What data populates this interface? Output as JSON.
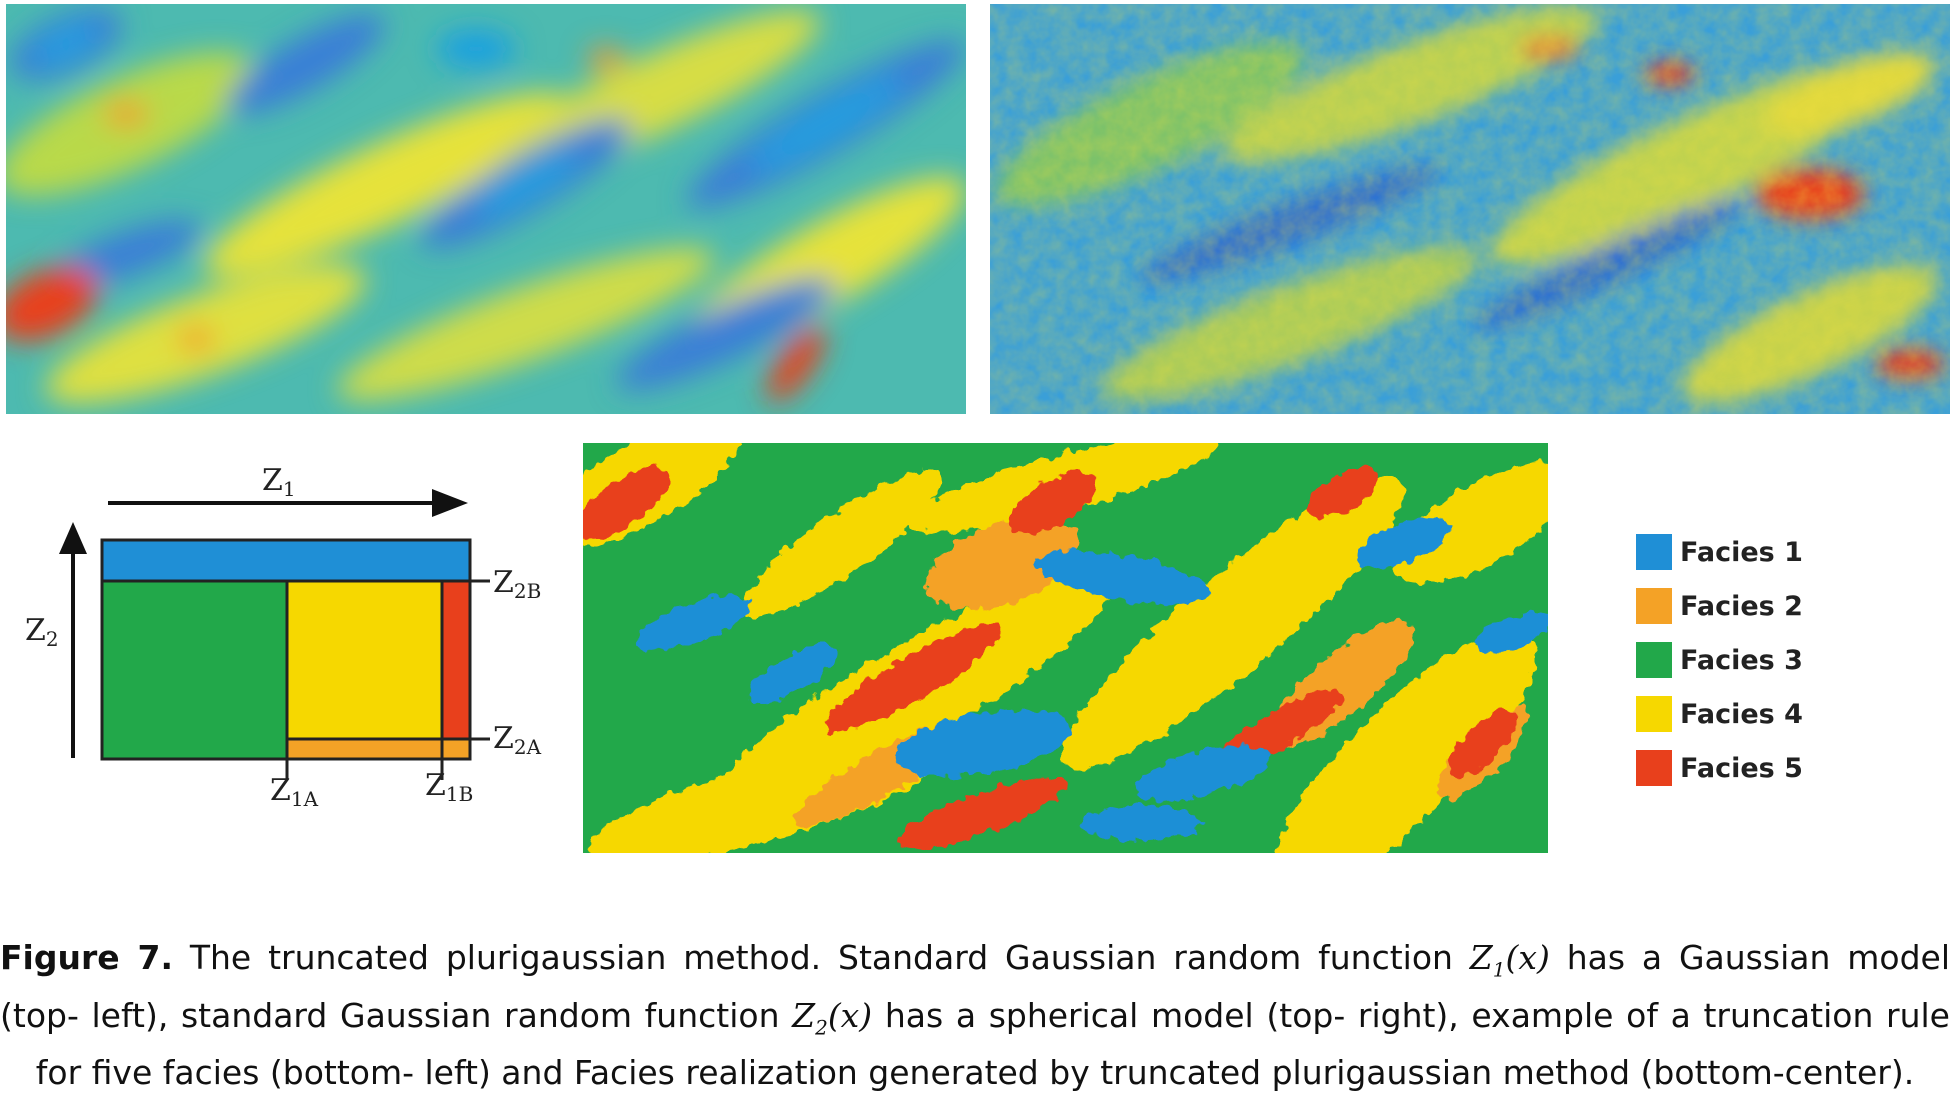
{
  "panels": {
    "top_left": "gaussian-model-field",
    "top_right": "spherical-model-field",
    "bottom_center": "facies-realization"
  },
  "colors": {
    "facies_1": "#1f8fd6",
    "facies_2": "#f4a226",
    "facies_3": "#22a84a",
    "facies_4": "#f6d800",
    "facies_5": "#e8401c",
    "field_low": "#1fa0e0",
    "field_mid": "#4dbab0",
    "field_high": "#e6e23a",
    "field_peak": "#e8401c"
  },
  "truncation_rule": {
    "z1": "Z",
    "z1_sub": "1",
    "z2": "Z",
    "z2_sub": "2",
    "z1a": "Z",
    "z1a_sub": "1A",
    "z1b": "Z",
    "z1b_sub": "1B",
    "z2a": "Z",
    "z2a_sub": "2A",
    "z2b": "Z",
    "z2b_sub": "2B"
  },
  "legend": [
    {
      "label": "Facies 1",
      "color": "#1f8fd6"
    },
    {
      "label": "Facies 2",
      "color": "#f4a226"
    },
    {
      "label": "Facies 3",
      "color": "#22a84a"
    },
    {
      "label": "Facies 4",
      "color": "#f6d800"
    },
    {
      "label": "Facies 5",
      "color": "#e8401c"
    }
  ],
  "caption": {
    "label": "Figure 7.",
    "part1": " The truncated plurigaussian method. Standard Gaussian random function ",
    "z1": "Z",
    "z1_sub": "1",
    "z1_arg": "(x)",
    "part2": " has a Gaussian model (top- left), standard Gaussian random function ",
    "z2": "Z",
    "z2_sub": "2",
    "z2_arg": "(x)",
    "part3": " has a spherical model (top- right), example of a truncation rule for five facies (bottom- left) and Facies realization generated by truncated plurigaussian method (bottom-center)."
  }
}
